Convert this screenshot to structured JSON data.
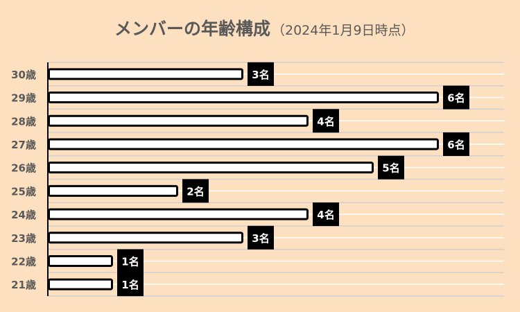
{
  "chart_data": {
    "type": "bar",
    "orientation": "horizontal",
    "title": "メンバーの年齢構成",
    "subtitle": "（2024年1月9日時点）",
    "categories": [
      "30歳",
      "29歳",
      "28歳",
      "27歳",
      "26歳",
      "25歳",
      "24歳",
      "23歳",
      "22歳",
      "21歳"
    ],
    "values": [
      3,
      6,
      4,
      6,
      5,
      2,
      4,
      3,
      1,
      1
    ],
    "data_labels": [
      "3名",
      "6名",
      "4名",
      "6名",
      "5名",
      "2名",
      "4名",
      "3名",
      "1名",
      "1名"
    ],
    "xlim": [
      0,
      7
    ],
    "grid": true,
    "legend": "none",
    "colors": {
      "background": "#fde0bf",
      "bar_fill": "#ffffff",
      "bar_stroke": "#000000",
      "label_box": "#000000",
      "label_text": "#ffffff",
      "title": "#595959",
      "category_text": "#595959"
    }
  }
}
